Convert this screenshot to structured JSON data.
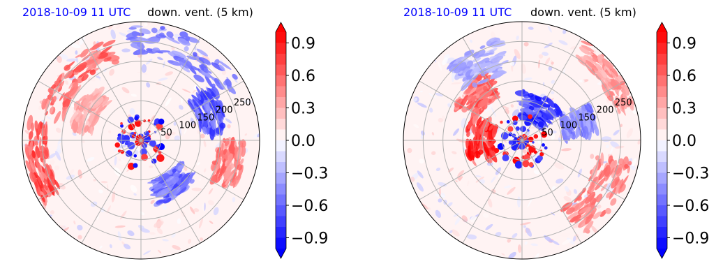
{
  "chart_data": [
    {
      "type": "heatmap",
      "projection": "polar",
      "title_left": "2018-10-09 11 UTC",
      "title_right": "down. vent. (5 km)",
      "radial_ticks": [
        50,
        100,
        150,
        200,
        250
      ],
      "angular_gridlines_deg": [
        0,
        30,
        60,
        90,
        120,
        150,
        180,
        210,
        240,
        270,
        300,
        330
      ],
      "colorbar": {
        "colormap": "bwr",
        "range": [
          -1.0,
          1.0
        ],
        "extend": "both",
        "ticks": [
          "0.9",
          "0.6",
          "0.3",
          "0.0",
          "−0.3",
          "−0.6",
          "−0.9"
        ]
      },
      "grid": true
    },
    {
      "type": "heatmap",
      "projection": "polar",
      "title_left": "2018-10-09 11 UTC",
      "title_right": "down. vent. (5 km)",
      "radial_ticks": [
        50,
        100,
        150,
        200,
        250
      ],
      "angular_gridlines_deg": [
        0,
        30,
        60,
        90,
        120,
        150,
        180,
        210,
        240,
        270,
        300,
        330
      ],
      "colorbar": {
        "colormap": "bwr",
        "range": [
          -1.0,
          1.0
        ],
        "extend": "both",
        "ticks": [
          "0.9",
          "0.6",
          "0.3",
          "0.0",
          "−0.3",
          "−0.6",
          "−0.9"
        ]
      },
      "grid": true
    }
  ],
  "colors": {
    "red": "#ff0000",
    "blue": "#0000ff",
    "neutral": "#ffffff",
    "title_blue": "#0000ff"
  }
}
